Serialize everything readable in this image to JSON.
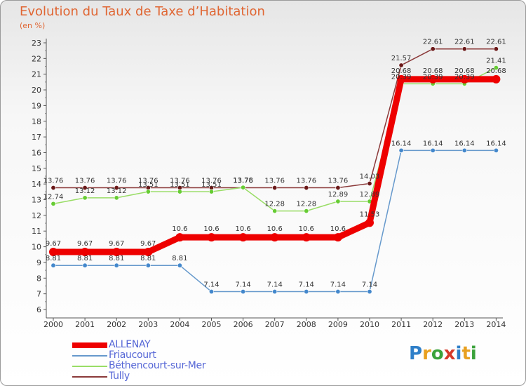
{
  "header": {
    "title": "Evolution du Taux de Taxe d’Habitation",
    "subtitle": "(en %)"
  },
  "logo": {
    "text": "Proxiti",
    "colors": [
      "#2f7fc8",
      "#e8a020",
      "#3aa23a",
      "#d63a2a",
      "#2f7fc8",
      "#e8a020",
      "#3aa23a"
    ]
  },
  "chart_data": {
    "type": "line",
    "x": [
      "2000",
      "2001",
      "2002",
      "2003",
      "2004",
      "2005",
      "2006",
      "2007",
      "2008",
      "2009",
      "2010",
      "2011",
      "2012",
      "2013",
      "2014"
    ],
    "ylim": [
      6,
      23
    ],
    "yticks": [
      "6",
      "7",
      "8",
      "9",
      "10",
      "11",
      "12",
      "13",
      "14",
      "15",
      "16",
      "17",
      "18",
      "19",
      "20",
      "21",
      "22",
      "23"
    ],
    "grid": false,
    "legend": "bottom-left",
    "series": [
      {
        "name": "Tully",
        "color": "#8b3a3a",
        "point_color": "#6a1818",
        "values": [
          13.76,
          13.76,
          13.76,
          13.76,
          13.76,
          13.76,
          13.76,
          13.76,
          13.76,
          13.76,
          14.03,
          21.57,
          22.61,
          22.61,
          22.61
        ],
        "labels": [
          "13.76",
          "13.76",
          "13.76",
          "13.76",
          "13.76",
          "13.76",
          "13.76",
          "13.76",
          "13.76",
          "13.76",
          "14.03",
          "21.57",
          "22.61",
          "22.61",
          "22.61"
        ]
      },
      {
        "name": "Béthencourt-sur-Mer",
        "color": "#99dd66",
        "point_color": "#66cc33",
        "values": [
          12.74,
          13.12,
          13.12,
          13.51,
          13.51,
          13.51,
          13.78,
          12.28,
          12.28,
          12.89,
          12.89,
          20.39,
          20.39,
          20.39,
          21.41
        ],
        "labels": [
          "12.74",
          "13.12",
          "13.12",
          "13.51",
          "13.51",
          "13.51",
          "13.78",
          "12.28",
          "12.28",
          "12.89",
          "12.89",
          "20.39",
          "20.39",
          "20.39",
          "21.41"
        ]
      },
      {
        "name": "Friaucourt",
        "color": "#6699cc",
        "point_color": "#4488cc",
        "values": [
          8.81,
          8.81,
          8.81,
          8.81,
          8.81,
          7.14,
          7.14,
          7.14,
          7.14,
          7.14,
          7.14,
          16.14,
          16.14,
          16.14,
          16.14
        ],
        "labels": [
          "8.81",
          "8.81",
          "8.81",
          "8.81",
          "8.81",
          "7.14",
          "7.14",
          "7.14",
          "7.14",
          "7.14",
          "7.14",
          "16.14",
          "16.14",
          "16.14",
          "16.14"
        ]
      },
      {
        "name": "ALLENAY",
        "color": "#ee0000",
        "point_color": "#ee0000",
        "values": [
          9.67,
          9.67,
          9.67,
          9.67,
          10.6,
          10.6,
          10.6,
          10.6,
          10.6,
          10.6,
          11.53,
          20.68,
          20.68,
          20.68,
          20.68
        ],
        "labels": [
          "9.67",
          "9.67",
          "9.67",
          "9.67",
          "10.6",
          "10.6",
          "10.6",
          "10.6",
          "10.6",
          "10.6",
          "11.53",
          "20.68",
          "20.68",
          "20.68",
          "20.68"
        ]
      }
    ]
  },
  "legend": {
    "items": [
      {
        "label": "ALLENAY",
        "color": "#ee0000"
      },
      {
        "label": "Friaucourt",
        "color": "#6699cc"
      },
      {
        "label": "Béthencourt-sur-Mer",
        "color": "#99dd66"
      },
      {
        "label": "Tully",
        "color": "#8b3a3a"
      }
    ]
  }
}
